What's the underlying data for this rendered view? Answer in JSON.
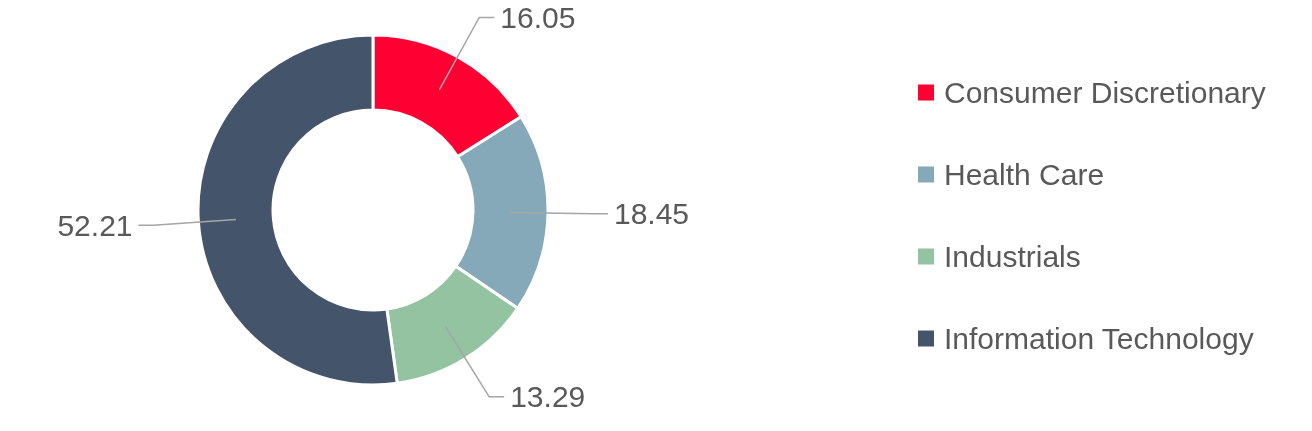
{
  "chart_data": {
    "type": "donut",
    "categories": [
      "Consumer Discretionary",
      "Health Care",
      "Industrials",
      "Information Technology"
    ],
    "values": [
      16.05,
      18.45,
      13.29,
      52.21
    ],
    "colors": [
      "#ff0033",
      "#85a9b8",
      "#93c3a0",
      "#44546a"
    ],
    "data_labels": true,
    "legend": "right"
  }
}
